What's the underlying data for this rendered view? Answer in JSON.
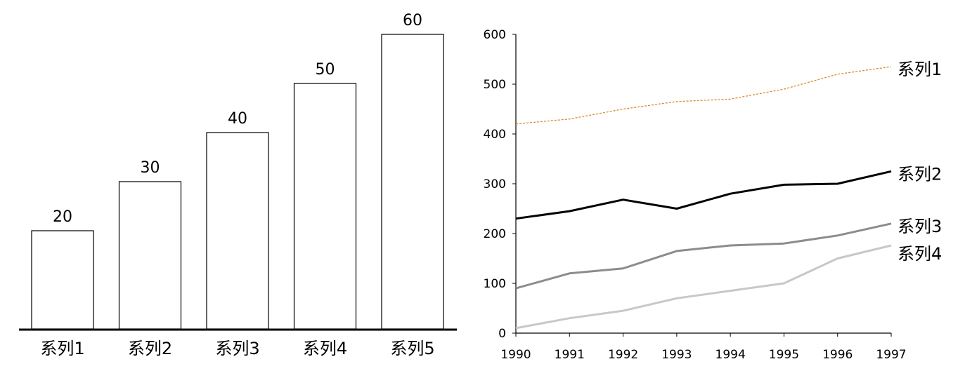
{
  "chart_data": [
    {
      "type": "bar",
      "categories": [
        "系列1",
        "系列2",
        "系列3",
        "系列4",
        "系列5"
      ],
      "values": [
        20,
        30,
        40,
        50,
        60
      ],
      "data_labels": [
        "20",
        "30",
        "40",
        "50",
        "60"
      ],
      "ylim": [
        0,
        60
      ],
      "grid": false,
      "colors": {
        "bar_fill": "#ffffff",
        "bar_stroke": "#000000",
        "baseline": "#000000"
      }
    },
    {
      "type": "line",
      "x": [
        "1990",
        "1991",
        "1992",
        "1993",
        "1994",
        "1995",
        "1996",
        "1997"
      ],
      "ylim": [
        0,
        600
      ],
      "yticks": [
        "0",
        "100",
        "200",
        "300",
        "400",
        "500",
        "600"
      ],
      "grid": false,
      "series": [
        {
          "name": "系列1",
          "values": [
            420,
            430,
            450,
            465,
            470,
            490,
            520,
            535
          ],
          "color": "#d98a2e",
          "dashed": true
        },
        {
          "name": "系列2",
          "values": [
            230,
            245,
            268,
            250,
            280,
            298,
            300,
            325
          ],
          "color": "#000000",
          "dashed": false
        },
        {
          "name": "系列3",
          "values": [
            90,
            120,
            130,
            165,
            176,
            180,
            196,
            220
          ],
          "color": "#8c8c8c",
          "dashed": false
        },
        {
          "name": "系列4",
          "values": [
            10,
            30,
            45,
            70,
            85,
            100,
            150,
            176
          ],
          "color": "#c8c8c8",
          "dashed": false
        }
      ]
    }
  ]
}
